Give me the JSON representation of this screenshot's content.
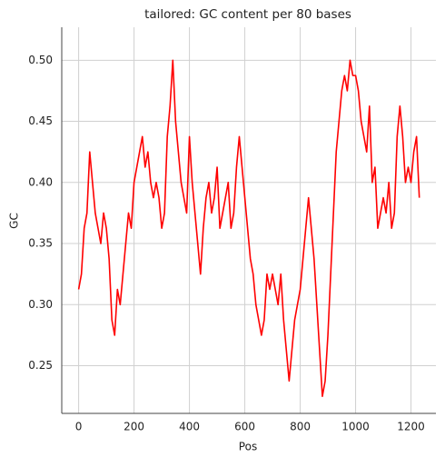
{
  "chart_data": {
    "type": "line",
    "title": "tailored: GC content per 80 bases",
    "x_label": "Pos",
    "y_label": "GC",
    "x": [
      0,
      10,
      20,
      30,
      40,
      50,
      60,
      70,
      80,
      90,
      100,
      110,
      120,
      130,
      140,
      150,
      160,
      170,
      180,
      190,
      200,
      210,
      220,
      230,
      240,
      250,
      260,
      270,
      280,
      290,
      300,
      310,
      320,
      330,
      340,
      350,
      360,
      370,
      380,
      390,
      400,
      410,
      420,
      430,
      440,
      450,
      460,
      470,
      480,
      490,
      500,
      510,
      520,
      530,
      540,
      550,
      560,
      570,
      580,
      590,
      600,
      610,
      620,
      630,
      640,
      650,
      660,
      670,
      680,
      690,
      700,
      710,
      720,
      730,
      740,
      750,
      760,
      770,
      780,
      790,
      800,
      810,
      820,
      830,
      840,
      850,
      860,
      870,
      880,
      890,
      900,
      910,
      920,
      930,
      940,
      950,
      960,
      970,
      980,
      990,
      1000,
      1010,
      1020,
      1030,
      1040,
      1050,
      1060,
      1070,
      1080,
      1090,
      1100,
      1110,
      1120,
      1130,
      1140,
      1150,
      1160,
      1170,
      1180,
      1190,
      1200,
      1210,
      1220,
      1230
    ],
    "series": [
      {
        "name": "GC",
        "color": "#ff0000",
        "values": [
          0.3125,
          0.325,
          0.3625,
          0.375,
          0.425,
          0.4,
          0.375,
          0.3625,
          0.35,
          0.375,
          0.3625,
          0.3375,
          0.2875,
          0.275,
          0.3125,
          0.3,
          0.325,
          0.35,
          0.375,
          0.3625,
          0.4,
          0.4125,
          0.425,
          0.4375,
          0.4125,
          0.425,
          0.4,
          0.3875,
          0.4,
          0.3875,
          0.3625,
          0.375,
          0.4375,
          0.4625,
          0.5,
          0.45,
          0.425,
          0.4,
          0.3875,
          0.375,
          0.4375,
          0.4,
          0.375,
          0.35,
          0.325,
          0.3625,
          0.3875,
          0.4,
          0.375,
          0.3875,
          0.4125,
          0.3625,
          0.375,
          0.3875,
          0.4,
          0.3625,
          0.375,
          0.4125,
          0.4375,
          0.4125,
          0.3875,
          0.3625,
          0.3375,
          0.325,
          0.3,
          0.2875,
          0.275,
          0.2875,
          0.325,
          0.3125,
          0.325,
          0.3125,
          0.3,
          0.325,
          0.2875,
          0.2625,
          0.2375,
          0.2625,
          0.2875,
          0.3,
          0.3125,
          0.3375,
          0.3625,
          0.3875,
          0.3625,
          0.3375,
          0.3,
          0.2625,
          0.225,
          0.2375,
          0.275,
          0.325,
          0.375,
          0.425,
          0.45,
          0.475,
          0.4875,
          0.475,
          0.5,
          0.4875,
          0.4875,
          0.475,
          0.45,
          0.4375,
          0.425,
          0.4625,
          0.4,
          0.4125,
          0.3625,
          0.375,
          0.3875,
          0.375,
          0.4,
          0.3625,
          0.375,
          0.4375,
          0.4625,
          0.4375,
          0.4,
          0.4125,
          0.4,
          0.425,
          0.4375,
          0.3875
        ]
      }
    ],
    "xlim": [
      -61,
      1290
    ],
    "ylim": [
      0.211,
      0.527
    ],
    "xticks": [
      0,
      200,
      400,
      600,
      800,
      1000,
      1200
    ],
    "yticks": [
      0.25,
      {
        "value": 0.3,
        "label": "0.30"
      },
      0.35,
      {
        "value": 0.4,
        "label": "0.40"
      },
      0.45,
      {
        "value": 0.5,
        "label": "0.50"
      }
    ],
    "grid": true
  }
}
